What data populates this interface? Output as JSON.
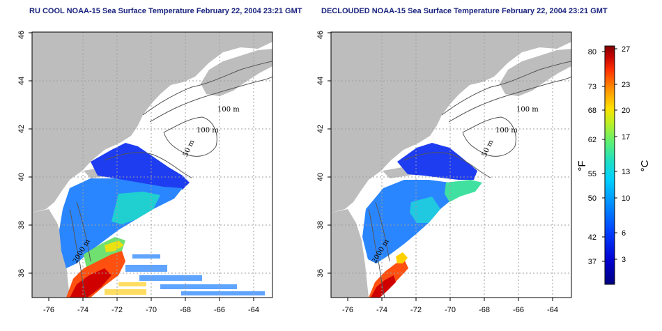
{
  "titles": {
    "left": "RU COOL NOAA-15 Sea Surface Temperature February 22, 2004 23:21 GMT",
    "right": "DECLOUDED NOAA-15 Sea Surface Temperature February 22, 2004 23:21 GMT"
  },
  "axes": {
    "lon_ticks": [
      "-76",
      "-74",
      "-72",
      "-70",
      "-68",
      "-66",
      "-64"
    ],
    "lat_ticks": [
      "36",
      "38",
      "40",
      "42",
      "44",
      "46"
    ],
    "lon_range": [
      -77.2,
      -63.2
    ],
    "lat_range": [
      35.0,
      46.0
    ]
  },
  "contours": {
    "left": [
      "100 m",
      "100 m",
      "50 m",
      "2000 m"
    ],
    "right": [
      "100 m",
      "100 m",
      "50 m",
      "2000 m"
    ]
  },
  "colorbar": {
    "fahrenheit_label": "°F",
    "celsius_label": "°C",
    "fahrenheit_ticks": [
      "80",
      "73",
      "68",
      "62",
      "55",
      "50",
      "42",
      "37"
    ],
    "celsius_ticks": [
      "27",
      "23",
      "20",
      "17",
      "13",
      "10",
      "6",
      "3"
    ],
    "colors": [
      "#000080",
      "#0000d0",
      "#0040ff",
      "#0090ff",
      "#00d0ff",
      "#20e0c0",
      "#60f070",
      "#c0f020",
      "#ffe000",
      "#ff9000",
      "#ff3000",
      "#c00000",
      "#800000"
    ]
  },
  "colors": {
    "land": "#bdbdbd",
    "title": "#1a237e",
    "contour": "#555555",
    "grid": "#9e9e9e"
  }
}
